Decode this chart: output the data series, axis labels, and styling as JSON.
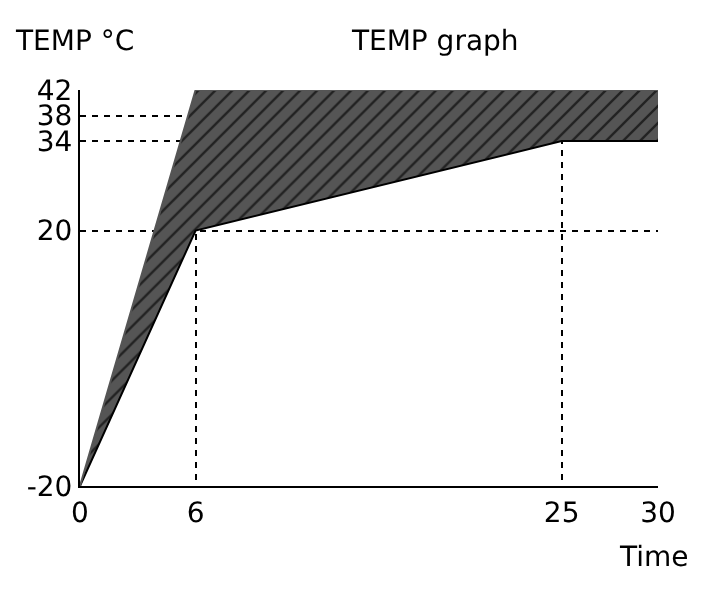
{
  "chart_data": {
    "type": "area",
    "title": "TEMP graph",
    "ylabel": "TEMP °C",
    "xlabel": "Time",
    "xlim": [
      0,
      30
    ],
    "xticks": [
      0,
      6,
      25,
      30
    ],
    "ylim": [
      -20,
      42
    ],
    "yticks": [
      -20,
      20,
      34,
      38,
      42
    ],
    "grid": true,
    "series": [
      {
        "type": "line",
        "color": "#000000",
        "x": [
          0,
          6,
          25,
          30
        ],
        "values": [
          -20,
          20,
          34,
          34
        ]
      },
      {
        "type": "area",
        "color": "#555555",
        "x": [
          0,
          6,
          25,
          30
        ],
        "values": [
          -20,
          42,
          42,
          42
        ]
      }
    ]
  }
}
